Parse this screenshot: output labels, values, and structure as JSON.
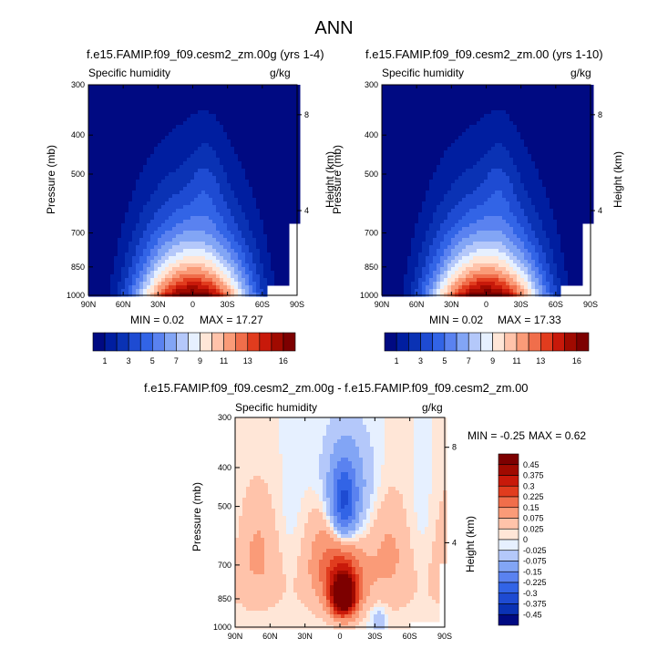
{
  "main_title": "ANN",
  "chart_data": [
    {
      "type": "contour",
      "title": "f.e15.FAMIP.f09_f09.cesm2_zm.00g (yrs 1-4)",
      "left_label": "Specific humidity",
      "right_label": "g/kg",
      "xlabel": "",
      "ylabel": "Pressure (mb)",
      "ylabel_right": "Height (km)",
      "x_ticks": [
        "90N",
        "60N",
        "30N",
        "0",
        "30S",
        "60S",
        "90S"
      ],
      "y_ticks": [
        "300",
        "400",
        "500",
        "700",
        "850",
        "1000"
      ],
      "y_ticks_right": [
        "8",
        "4"
      ],
      "min_label": "MIN =",
      "min_value": "0.02",
      "max_label": "MAX =",
      "max_value": "17.27",
      "levels": [
        1,
        2,
        3,
        4,
        5,
        6,
        7,
        8,
        9,
        10,
        11,
        12,
        13,
        14,
        15,
        16
      ],
      "colorbar_labels": [
        "1",
        "3",
        "5",
        "7",
        "9",
        "11",
        "13",
        "16"
      ],
      "peak_value": 17.27
    },
    {
      "type": "contour",
      "title": "f.e15.FAMIP.f09_f09.cesm2_zm.00 (yrs 1-10)",
      "left_label": "Specific humidity",
      "right_label": "g/kg",
      "xlabel": "",
      "ylabel": "Pressure (mb)",
      "ylabel_right": "Height (km)",
      "x_ticks": [
        "90N",
        "60N",
        "30N",
        "0",
        "30S",
        "60S",
        "90S"
      ],
      "y_ticks": [
        "300",
        "400",
        "500",
        "700",
        "850",
        "1000"
      ],
      "y_ticks_right": [
        "8",
        "4"
      ],
      "min_label": "MIN =",
      "min_value": "0.02",
      "max_label": "MAX =",
      "max_value": "17.33",
      "levels": [
        1,
        2,
        3,
        4,
        5,
        6,
        7,
        8,
        9,
        10,
        11,
        12,
        13,
        14,
        15,
        16
      ],
      "colorbar_labels": [
        "1",
        "3",
        "5",
        "7",
        "9",
        "11",
        "13",
        "16"
      ],
      "peak_value": 17.33
    },
    {
      "type": "contour",
      "title": "f.e15.FAMIP.f09_f09.cesm2_zm.00g - f.e15.FAMIP.f09_f09.cesm2_zm.00",
      "left_label": "Specific humidity",
      "right_label": "g/kg",
      "xlabel": "",
      "ylabel": "Pressure (mb)",
      "ylabel_right": "Height (km)",
      "x_ticks": [
        "90N",
        "60N",
        "30N",
        "0",
        "30S",
        "60S",
        "90S"
      ],
      "y_ticks": [
        "300",
        "400",
        "500",
        "700",
        "850",
        "1000"
      ],
      "y_ticks_right": [
        "8",
        "4"
      ],
      "min_label": "MIN =",
      "min_value": "-0.25",
      "max_label": "MAX =",
      "max_value": "0.62",
      "colorbar_labels": [
        "0.45",
        "0.375",
        "0.3",
        "0.225",
        "0.15",
        "0.075",
        "0.025",
        "0",
        "-0.025",
        "-0.075",
        "-0.15",
        "-0.225",
        "-0.3",
        "-0.375",
        "-0.45"
      ]
    }
  ],
  "colors": {
    "seq": [
      "#000a82",
      "#001ea0",
      "#0a32b4",
      "#1e4bd2",
      "#3264e6",
      "#5a82f0",
      "#82a5f5",
      "#b4c8fa",
      "#e6f0ff",
      "#ffe6d7",
      "#ffc3aa",
      "#fa9b78",
      "#f06e4b",
      "#e13c1e",
      "#c8190a",
      "#a00a00",
      "#7d0000"
    ],
    "diff": [
      "#7d0000",
      "#a00a00",
      "#c8190a",
      "#e13c1e",
      "#f06e4b",
      "#fa9b78",
      "#ffc3aa",
      "#ffe6d7",
      "#e6f0ff",
      "#b4c8fa",
      "#82a5f5",
      "#5a82f0",
      "#3264e6",
      "#1e4bd2",
      "#0a32b4",
      "#000a82"
    ]
  }
}
